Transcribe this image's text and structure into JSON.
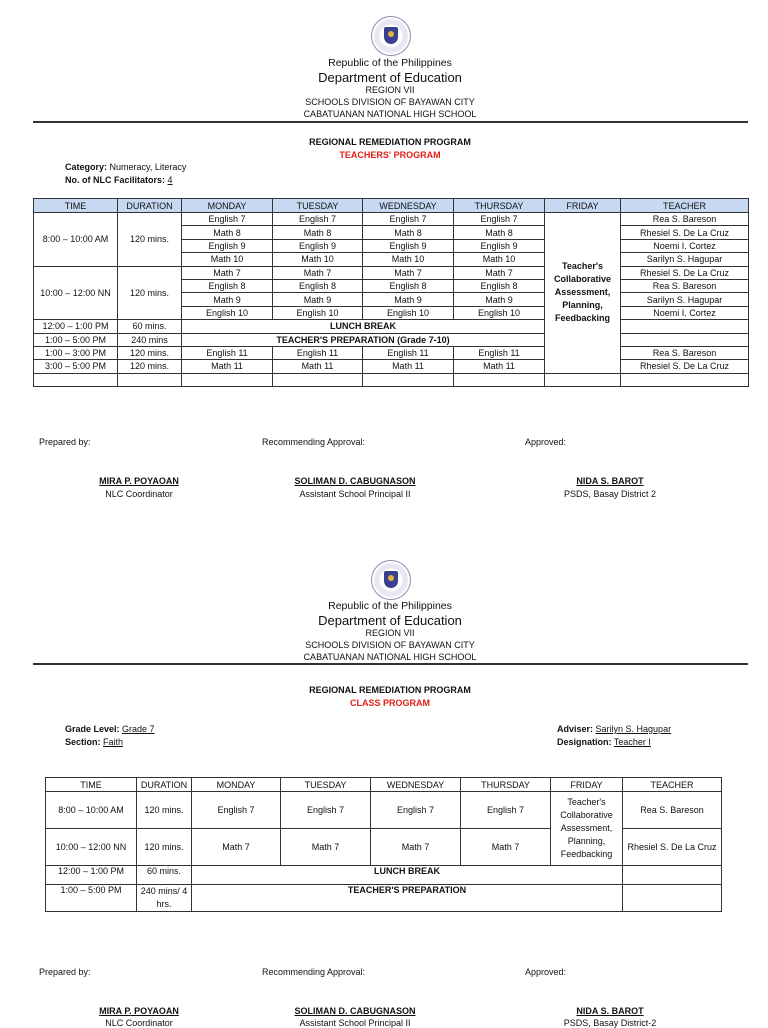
{
  "header": {
    "republic": "Republic of the Philippines",
    "department": "Department of Education",
    "region": "REGION VII",
    "division": "SCHOOLS DIVISION OF BAYAWAN CITY",
    "school": "CABATUANAN NATIONAL HIGH SCHOOL"
  },
  "program_title": "REGIONAL REMEDIATION PROGRAM",
  "teachers_program": {
    "subtitle": "TEACHERS' PROGRAM",
    "category_label": "Category:",
    "category_value": "Numeracy, Literacy",
    "facilitators_label": "No. of NLC Facilitators:",
    "facilitators_value": "4",
    "table": {
      "headers": [
        "TIME",
        "DURATION",
        "MONDAY",
        "TUESDAY",
        "WEDNESDAY",
        "THURSDAY",
        "FRIDAY",
        "TEACHER"
      ],
      "friday": "Teacher's Collaborative Assessment, Planning, Feedbacking",
      "blocks": [
        {
          "time": "8:00 – 10:00 AM",
          "duration": "120 mins.",
          "rows": [
            {
              "subjects": [
                "English 7",
                "English 7",
                "English 7",
                "English 7"
              ],
              "teacher": "Rea S. Bareson"
            },
            {
              "subjects": [
                "Math 8",
                "Math 8",
                "Math 8",
                "Math 8"
              ],
              "teacher": "Rhesiel S. De La Cruz"
            },
            {
              "subjects": [
                "English 9",
                "English 9",
                "English 9",
                "English 9"
              ],
              "teacher": "Noemi I. Cortez"
            },
            {
              "subjects": [
                "Math 10",
                "Math 10",
                "Math 10",
                "Math 10"
              ],
              "teacher": "Sarilyn S. Hagupar"
            }
          ]
        },
        {
          "time": "10:00 – 12:00 NN",
          "duration": "120 mins.",
          "rows": [
            {
              "subjects": [
                "Math 7",
                "Math 7",
                "Math 7",
                "Math 7"
              ],
              "teacher": "Rhesiel S. De La Cruz"
            },
            {
              "subjects": [
                "English 8",
                "English 8",
                "English 8",
                "English 8"
              ],
              "teacher": "Rea S. Bareson"
            },
            {
              "subjects": [
                "Math 9",
                "Math 9",
                "Math 9",
                "Math 9"
              ],
              "teacher": "Sarilyn S. Hagupar"
            },
            {
              "subjects": [
                "English 10",
                "English 10",
                "English 10",
                "English 10"
              ],
              "teacher": "Noemi I. Cortez"
            }
          ]
        }
      ],
      "special": [
        {
          "time": "12:00 – 1:00 PM",
          "duration": "60 mins.",
          "text": "LUNCH BREAK"
        },
        {
          "time": "1:00 – 5:00 PM",
          "duration": "240 mins",
          "text": "TEACHER'S PREPARATION (Grade 7-10)"
        }
      ],
      "afternoon": [
        {
          "time": "1:00 – 3:00 PM",
          "duration": "120 mins.",
          "subjects": [
            "English 11",
            "English 11",
            "English 11",
            "English 11"
          ],
          "teacher": "Rea S. Bareson"
        },
        {
          "time": "3:00 – 5:00 PM",
          "duration": "120 mins.",
          "subjects": [
            "Math 11",
            "Math 11",
            "Math 11",
            "Math 11"
          ],
          "teacher": "Rhesiel S. De La Cruz"
        }
      ]
    }
  },
  "class_program": {
    "subtitle": "CLASS PROGRAM",
    "grade_label": "Grade Level:",
    "grade_value": "Grade 7",
    "section_label": "Section:",
    "section_value": "Faith",
    "adviser_label": "Adviser:",
    "adviser_value": "Sarilyn S. Hagupar",
    "designation_label": "Designation:",
    "designation_value": "Teacher I",
    "table": {
      "headers": [
        "TIME",
        "DURATION",
        "MONDAY",
        "TUESDAY",
        "WEDNESDAY",
        "THURSDAY",
        "FRIDAY",
        "TEACHER"
      ],
      "friday": "Teacher's Collaborative Assessment, Planning, Feedbacking",
      "rows": [
        {
          "time": "8:00 – 10:00 AM",
          "duration": "120 mins.",
          "subjects": [
            "English 7",
            "English 7",
            "English 7",
            "English 7"
          ],
          "teacher": "Rea S. Bareson"
        },
        {
          "time": "10:00 – 12:00 NN",
          "duration": "120 mins.",
          "subjects": [
            "Math 7",
            "Math 7",
            "Math 7",
            "Math 7"
          ],
          "teacher": "Rhesiel S. De La Cruz"
        }
      ],
      "special": [
        {
          "time": "12:00 – 1:00 PM",
          "duration": "60 mins.",
          "text": "LUNCH BREAK"
        },
        {
          "time": "1:00 – 5:00 PM",
          "duration": "240 mins/ 4 hrs.",
          "text": "TEACHER'S PREPARATION"
        }
      ]
    }
  },
  "signatures": {
    "prepared_label": "Prepared by:",
    "recommending_label": "Recommending Approval:",
    "approved_label": "Approved:",
    "prepared_name": "MIRA P. POYAOAN",
    "prepared_title": "NLC Coordinator",
    "recommending_name": "SOLIMAN D. CABUGNASON",
    "recommending_title": "Assistant School Principal II",
    "approved_name": "NIDA S. BAROT",
    "approved_title_1": "PSDS, Basay District 2",
    "approved_title_2": "PSDS, Basay District-2"
  }
}
